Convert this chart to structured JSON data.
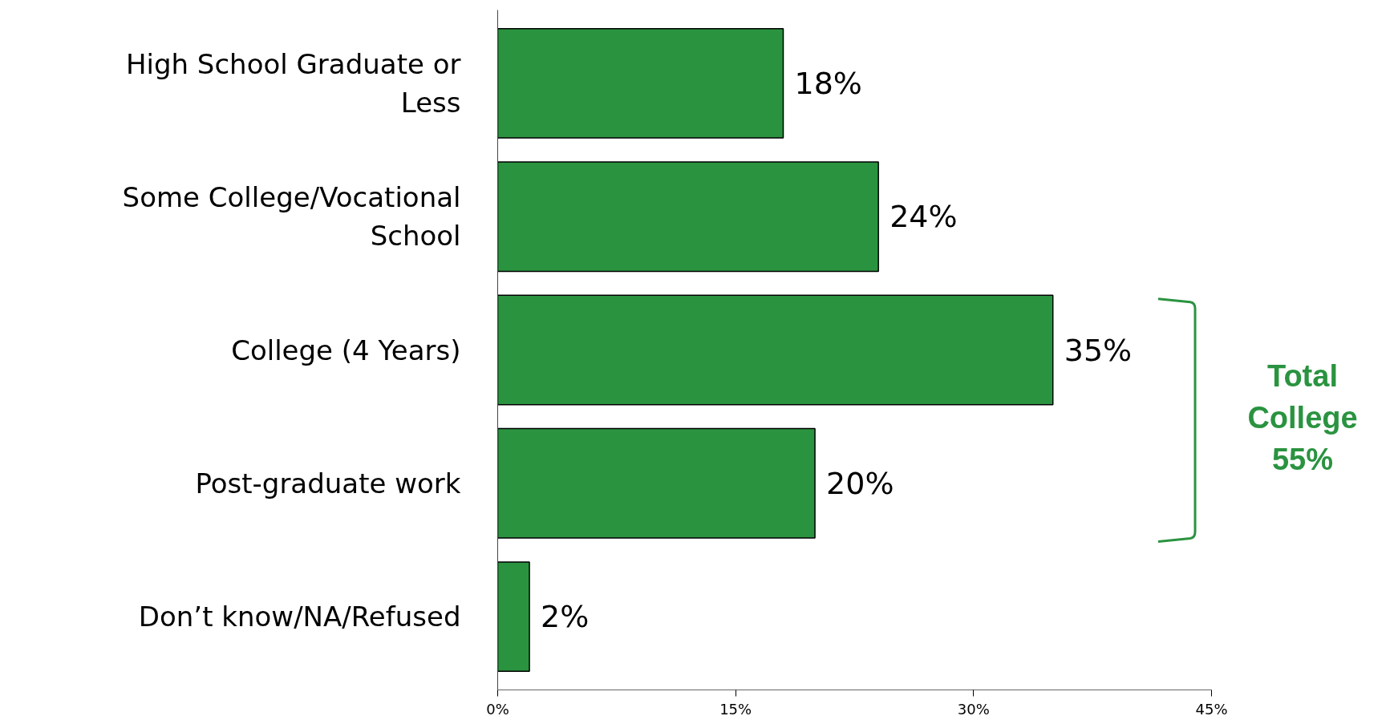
{
  "chart_data": {
    "type": "bar",
    "orientation": "horizontal",
    "categories": [
      "High School Graduate or Less",
      "Some College/Vocational School",
      "College (4 Years)",
      "Post-graduate work",
      "Don’t know/NA/Refused"
    ],
    "values": [
      18,
      24,
      35,
      20,
      2
    ],
    "value_labels": [
      "18%",
      "24%",
      "35%",
      "20%",
      "2%"
    ],
    "color": "#2a9340",
    "xlim": [
      0,
      45
    ],
    "xticks": [
      {
        "value": 0,
        "label": "0%"
      },
      {
        "value": 15,
        "label": "15%"
      },
      {
        "value": 30,
        "label": "30%"
      },
      {
        "value": 45,
        "label": "45%"
      }
    ],
    "grid": false,
    "annotations": [
      "Total College 55%"
    ]
  }
}
